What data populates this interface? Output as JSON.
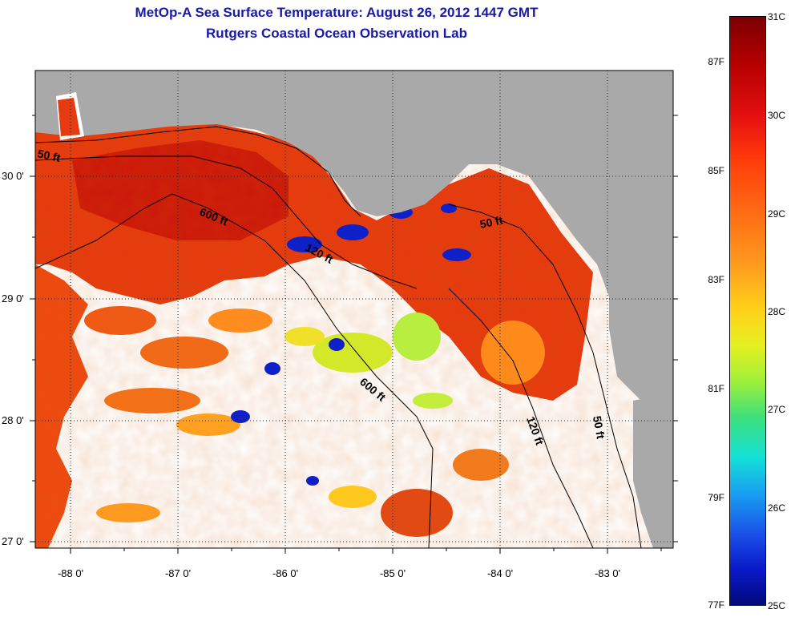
{
  "title": {
    "line1": "MetOp-A Sea Surface Temperature:  August 26, 2012 1447 GMT",
    "line2": "Rutgers Coastal Ocean Observation Lab"
  },
  "axes": {
    "lat_labels": [
      "30 0'",
      "29 0'",
      "28 0'",
      "27 0'"
    ],
    "lon_labels": [
      "-88 0'",
      "-87 0'",
      "-86 0'",
      "-85 0'",
      "-84 0'",
      "-83 0'"
    ]
  },
  "contours": [
    "50 ft",
    "600 ft",
    "120 ft",
    "50 ft",
    "600 ft",
    "120 ft",
    "50 ft"
  ],
  "colorbar": {
    "fahrenheit": [
      "87F",
      "85F",
      "83F",
      "81F",
      "79F",
      "77F"
    ],
    "celsius": [
      "31C",
      "30C",
      "29C",
      "28C",
      "27C",
      "26C",
      "25C"
    ]
  },
  "colors": {
    "title": "#1a1aa6",
    "land": "#a9a9a9",
    "cloud": "#ffffff",
    "warm": "#e8380f",
    "cool": "#1020c8"
  }
}
